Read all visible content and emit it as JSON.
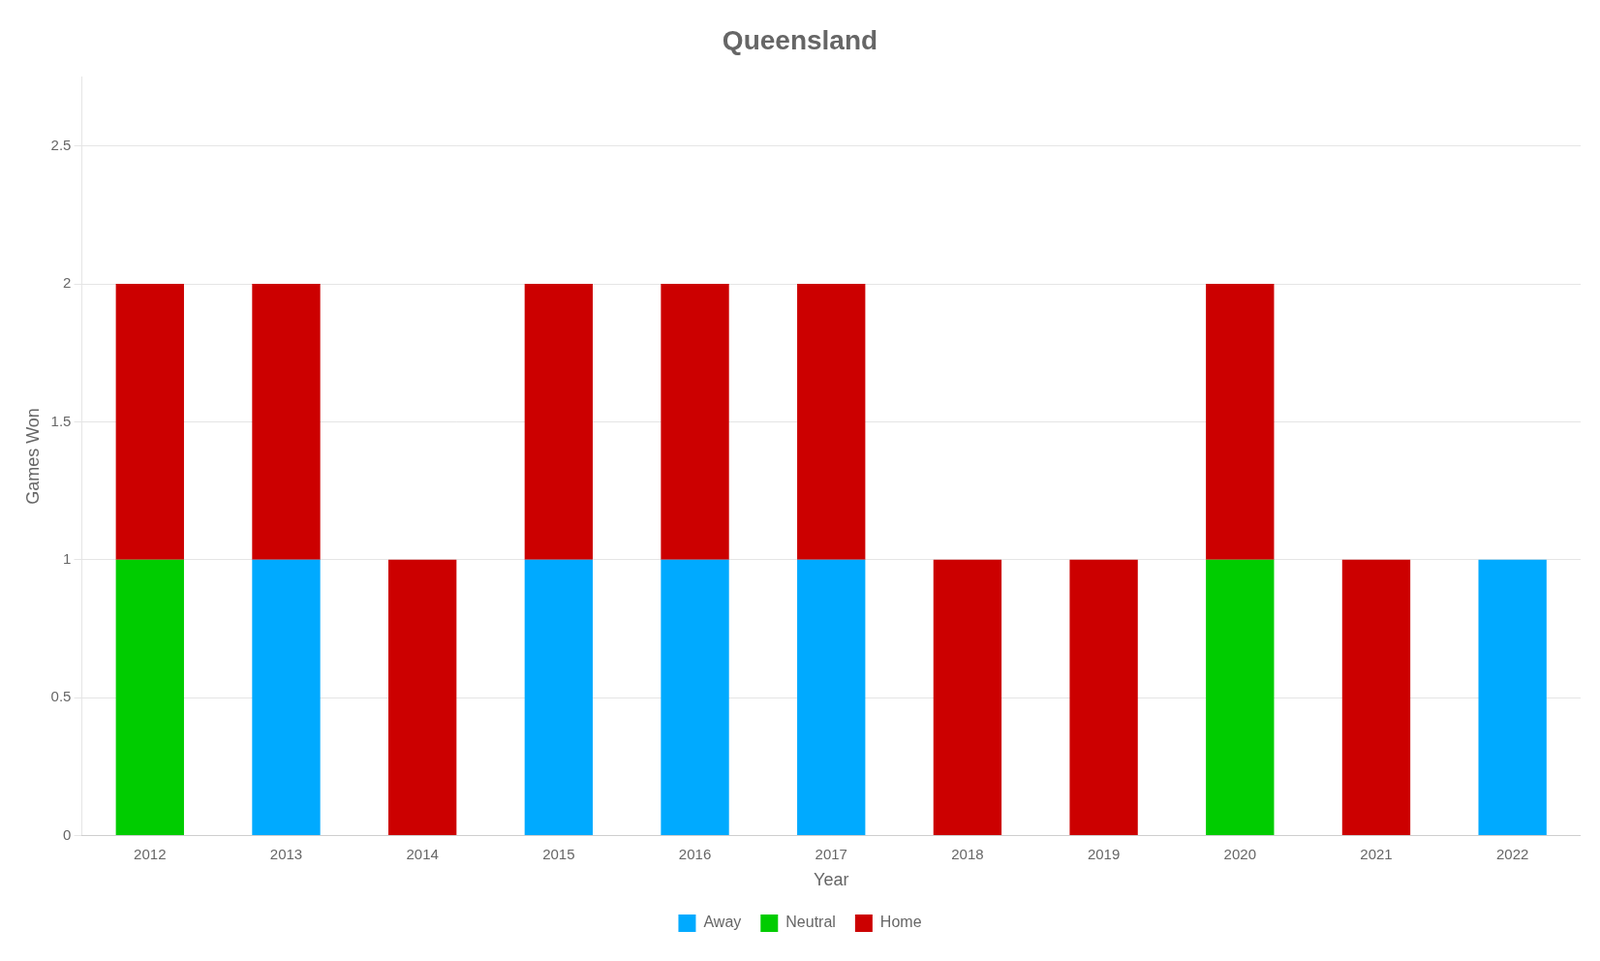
{
  "chart_data": {
    "type": "bar",
    "title": "Queensland",
    "xlabel": "Year",
    "ylabel": "Games Won",
    "categories": [
      "2012",
      "2013",
      "2014",
      "2015",
      "2016",
      "2017",
      "2018",
      "2019",
      "2020",
      "2021",
      "2022"
    ],
    "series": [
      {
        "name": "Away",
        "color": "#00AAFF",
        "values": [
          0,
          1,
          0,
          1,
          1,
          1,
          0,
          0,
          0,
          0,
          1
        ]
      },
      {
        "name": "Neutral",
        "color": "#00CC00",
        "values": [
          1,
          0,
          0,
          0,
          0,
          0,
          0,
          0,
          1,
          0,
          0
        ]
      },
      {
        "name": "Home",
        "color": "#CC0000",
        "values": [
          1,
          1,
          1,
          1,
          1,
          1,
          1,
          1,
          1,
          1,
          0
        ]
      }
    ],
    "stacked": true,
    "ylim": [
      0,
      2.75
    ],
    "yticks": [
      0,
      0.5,
      1,
      1.5,
      2,
      2.5
    ],
    "grid": true,
    "legend": "bottom"
  }
}
